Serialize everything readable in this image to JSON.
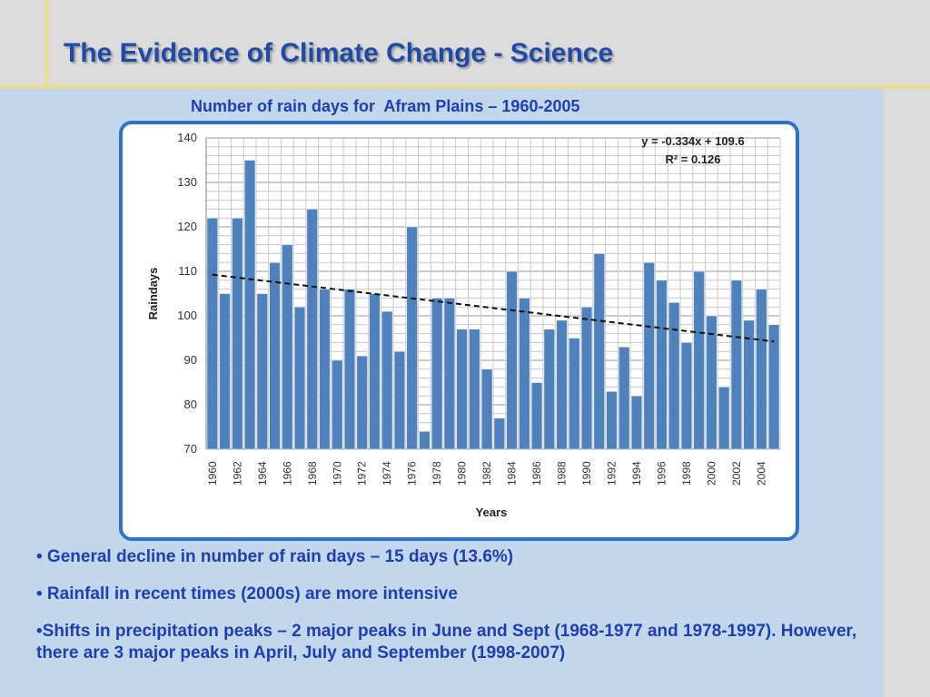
{
  "slide": {
    "title": "The Evidence of Climate Change - Science",
    "colors": {
      "title": "#1f4aa6",
      "bar": "#4f81bd",
      "accent_line": "#f5dc73",
      "panel": "#c2d6ec",
      "frame": "#2f73c6"
    }
  },
  "chart_title": "Number of rain days for  Afram Plains – 1960-2005",
  "chart_data": {
    "type": "bar",
    "xlabel": "Years",
    "ylabel": "Raindays",
    "ylim": [
      70,
      140
    ],
    "yticks": [
      70,
      80,
      90,
      100,
      110,
      120,
      130,
      140
    ],
    "grid": true,
    "categories": [
      1960,
      1961,
      1962,
      1963,
      1964,
      1965,
      1966,
      1967,
      1968,
      1969,
      1970,
      1971,
      1972,
      1973,
      1974,
      1975,
      1976,
      1977,
      1978,
      1979,
      1980,
      1981,
      1982,
      1983,
      1984,
      1985,
      1986,
      1987,
      1988,
      1989,
      1990,
      1991,
      1992,
      1993,
      1994,
      1995,
      1996,
      1997,
      1998,
      1999,
      2000,
      2001,
      2002,
      2003,
      2004,
      2005
    ],
    "xtick_labels": [
      "1960",
      "1962",
      "1964",
      "1966",
      "1968",
      "1970",
      "1972",
      "1974",
      "1976",
      "1978",
      "1980",
      "1982",
      "1984",
      "1986",
      "1988",
      "1990",
      "1992",
      "1994",
      "1996",
      "1998",
      "2000",
      "2002",
      "2004"
    ],
    "values": [
      122,
      105,
      122,
      135,
      105,
      112,
      116,
      102,
      124,
      106,
      90,
      106,
      91,
      105,
      101,
      92,
      120,
      74,
      104,
      104,
      97,
      97,
      88,
      77,
      110,
      104,
      85,
      97,
      99,
      95,
      102,
      114,
      83,
      93,
      82,
      112,
      108,
      103,
      94,
      110,
      100,
      84,
      108,
      99,
      106,
      98
    ],
    "trendline": {
      "slope": -0.334,
      "intercept": 109.6,
      "style": "dashed"
    },
    "annotations": [
      "y = -0.334x + 109.6",
      "R² = 0.126"
    ]
  },
  "bullets": [
    "• General decline in number of rain days – 15 days (13.6%)",
    "• Rainfall in recent times (2000s) are more intensive",
    "•Shifts in precipitation peaks – 2 major peaks in June and Sept (1968-1977 and 1978-1997). However, there are 3 major peaks in April, July and September (1998-2007)"
  ]
}
